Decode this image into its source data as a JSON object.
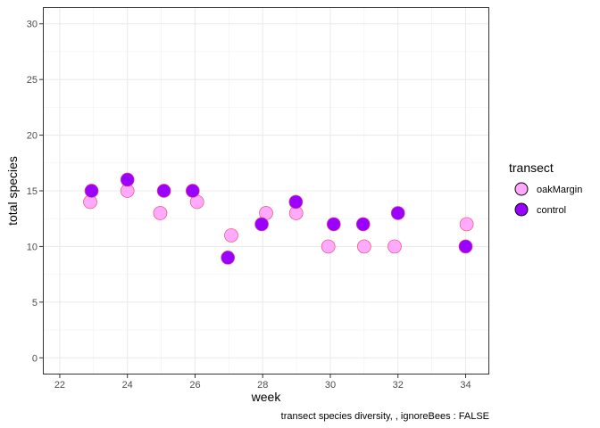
{
  "chart_data": {
    "type": "scatter",
    "xlabel": "week",
    "ylabel": "total species",
    "caption": "transect species diversity,  , ignoreBees : FALSE",
    "xlim": [
      21.5,
      34.7
    ],
    "ylim": [
      -1.5,
      31.5
    ],
    "x_ticks": [
      22,
      24,
      26,
      28,
      30,
      32,
      34
    ],
    "y_ticks": [
      0,
      5,
      10,
      15,
      20,
      25,
      30
    ],
    "grid": true,
    "legend": {
      "title": "transect",
      "position": "right"
    },
    "series": [
      {
        "name": "oakMargin",
        "fill": "#ffaaff",
        "stroke": "#f0506e",
        "points": [
          {
            "x": 22.9,
            "y": 14
          },
          {
            "x": 24.0,
            "y": 15
          },
          {
            "x": 24.97,
            "y": 13
          },
          {
            "x": 26.06,
            "y": 14
          },
          {
            "x": 27.07,
            "y": 11
          },
          {
            "x": 28.1,
            "y": 13
          },
          {
            "x": 28.99,
            "y": 13
          },
          {
            "x": 29.94,
            "y": 10
          },
          {
            "x": 31.0,
            "y": 10
          },
          {
            "x": 31.9,
            "y": 10
          },
          {
            "x": 34.03,
            "y": 12
          }
        ]
      },
      {
        "name": "control",
        "fill": "#9900ff",
        "stroke": "#f0506e",
        "points": [
          {
            "x": 22.94,
            "y": 15
          },
          {
            "x": 24.0,
            "y": 16
          },
          {
            "x": 25.08,
            "y": 15
          },
          {
            "x": 25.93,
            "y": 15
          },
          {
            "x": 26.97,
            "y": 9
          },
          {
            "x": 27.97,
            "y": 12
          },
          {
            "x": 28.98,
            "y": 14
          },
          {
            "x": 30.1,
            "y": 12
          },
          {
            "x": 30.97,
            "y": 12
          },
          {
            "x": 32.0,
            "y": 13
          },
          {
            "x": 34.0,
            "y": 10
          }
        ]
      }
    ]
  }
}
